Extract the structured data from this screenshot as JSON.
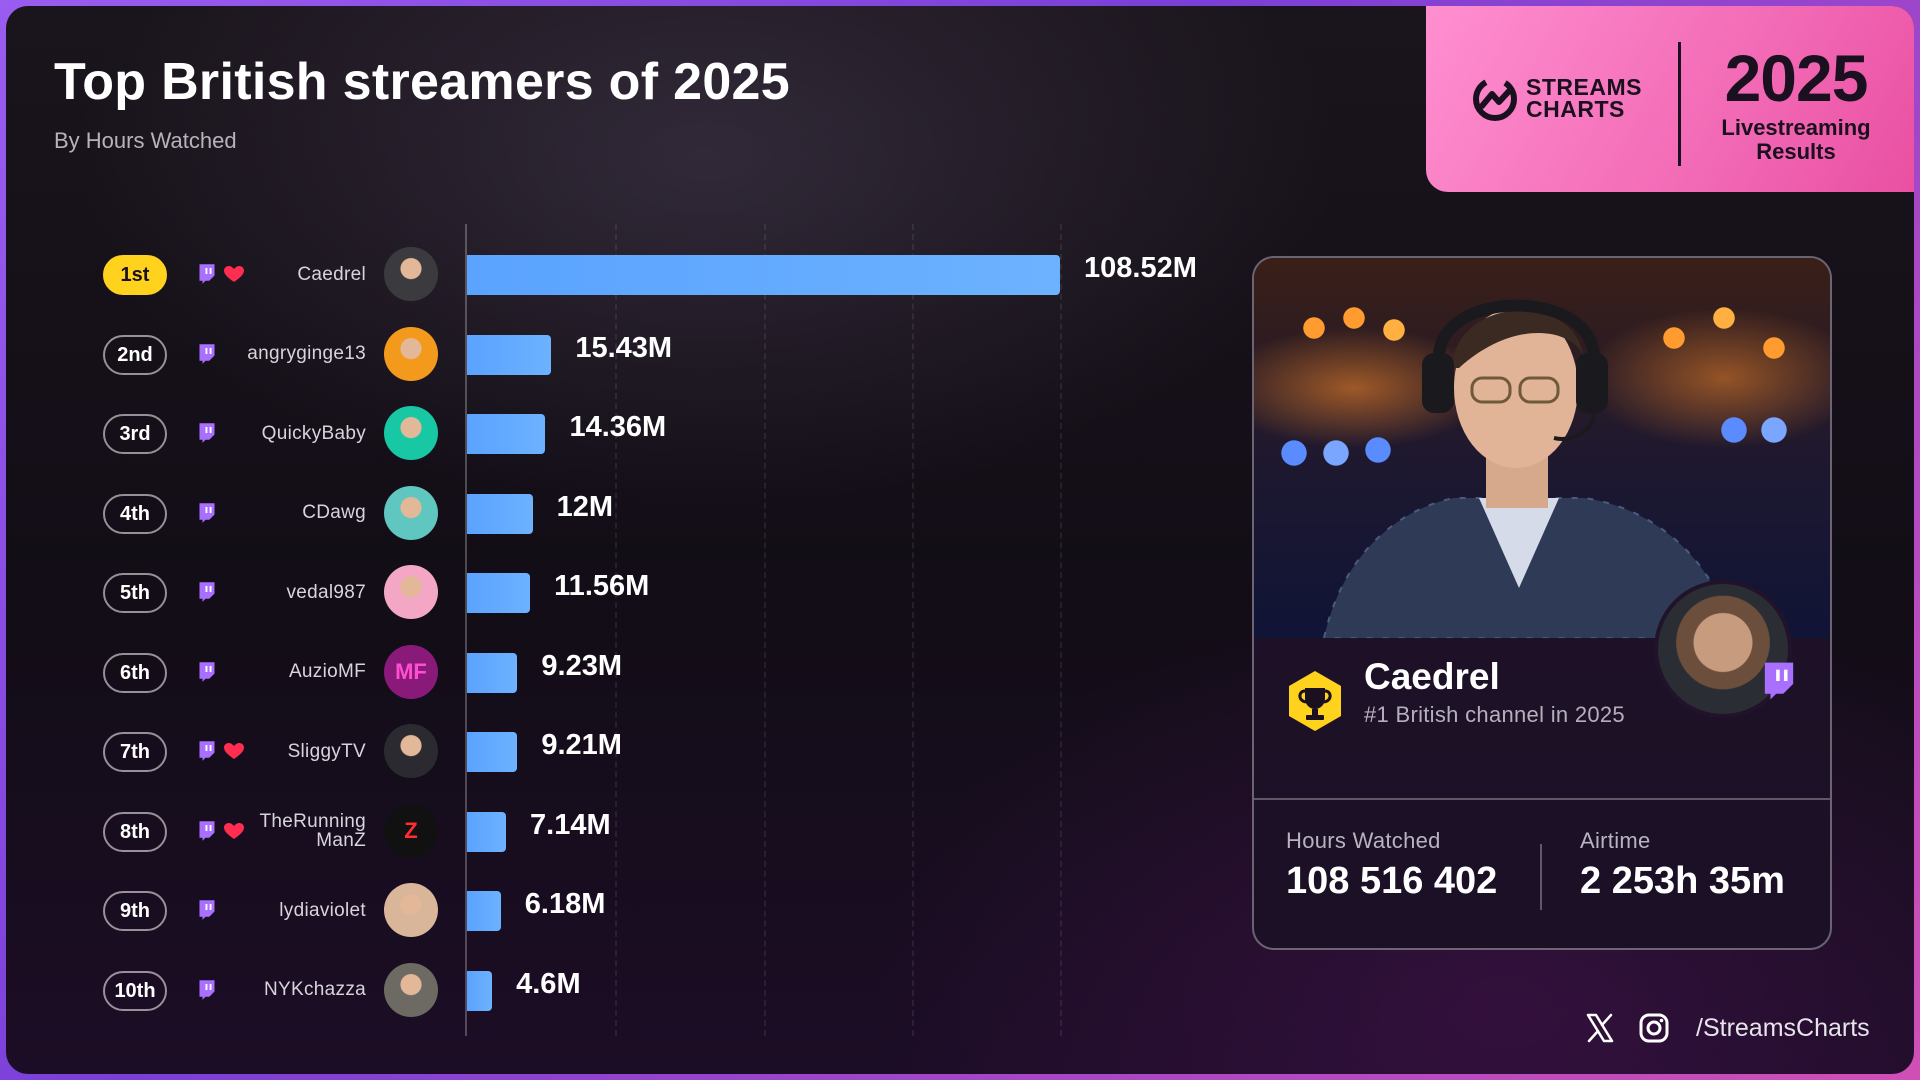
{
  "header": {
    "title": "Top British streamers of 2025",
    "subtitle": "By Hours Watched"
  },
  "brand": {
    "name_line1": "STREAMS",
    "name_line2": "CHARTS",
    "year": "2025",
    "tagline_line1": "Livestreaming",
    "tagline_line2": "Results"
  },
  "chart_data": {
    "type": "bar",
    "orientation": "horizontal",
    "title": "Top British streamers of 2025",
    "subtitle": "By Hours Watched",
    "categories": [
      "Caedrel",
      "angryginge13",
      "QuickyBaby",
      "CDawg",
      "vedal987",
      "AuzioMF",
      "SliggyTV",
      "TheRunning ManZ",
      "lydiaviolet",
      "NYKchazza"
    ],
    "values": [
      108.52,
      15.43,
      14.36,
      12,
      11.56,
      9.23,
      9.21,
      7.14,
      6.18,
      4.6
    ],
    "value_labels": [
      "108.52M",
      "15.43M",
      "14.36M",
      "12M",
      "11.56M",
      "9.23M",
      "9.21M",
      "7.14M",
      "6.18M",
      "4.6M"
    ],
    "unit": "M",
    "xlim": [
      0,
      108.52
    ],
    "grid": true,
    "bar_color": "#5aa3ff"
  },
  "rows": [
    {
      "rank": "1st",
      "channel": "Caedrel",
      "heart": true,
      "avatar_color": "#3b3a3f",
      "avatar_text": ""
    },
    {
      "rank": "2nd",
      "channel": "angryginge13",
      "heart": false,
      "avatar_color": "#f39a1c",
      "avatar_text": ""
    },
    {
      "rank": "3rd",
      "channel": "QuickyBaby",
      "heart": false,
      "avatar_color": "#18c7a4",
      "avatar_text": ""
    },
    {
      "rank": "4th",
      "channel": "CDawg",
      "heart": false,
      "avatar_color": "#5fc6c0",
      "avatar_text": ""
    },
    {
      "rank": "5th",
      "channel": "vedal987",
      "heart": false,
      "avatar_color": "#f3a7c4",
      "avatar_text": ""
    },
    {
      "rank": "6th",
      "channel": "AuzioMF",
      "heart": false,
      "avatar_color": "#8a1a7a",
      "avatar_text": "MF"
    },
    {
      "rank": "7th",
      "channel": "SliggyTV",
      "heart": true,
      "avatar_color": "#2a2a30",
      "avatar_text": ""
    },
    {
      "rank": "8th",
      "channel": "TheRunning ManZ",
      "heart": true,
      "avatar_color": "#111111",
      "avatar_text": "Z"
    },
    {
      "rank": "9th",
      "channel": "lydiaviolet",
      "heart": false,
      "avatar_color": "#d9b59a",
      "avatar_text": ""
    },
    {
      "rank": "10th",
      "channel": "NYKchazza",
      "heart": false,
      "avatar_color": "#6d6a63",
      "avatar_text": ""
    }
  ],
  "card": {
    "name": "Caedrel",
    "subtitle": "#1 British channel in 2025",
    "hours_label": "Hours Watched",
    "hours_value": "108 516 402",
    "airtime_label": "Airtime",
    "airtime_value": "2 253h 35m"
  },
  "footer": {
    "handle": "/StreamsCharts",
    "icons": [
      "x-icon",
      "instagram-icon"
    ]
  },
  "colors": {
    "accent_gold": "#ffd21e",
    "bar": "#5aa3ff",
    "brand_pink": "#f26ab5",
    "twitch_purple": "#a970ff",
    "heart_red": "#ff2d4f"
  }
}
